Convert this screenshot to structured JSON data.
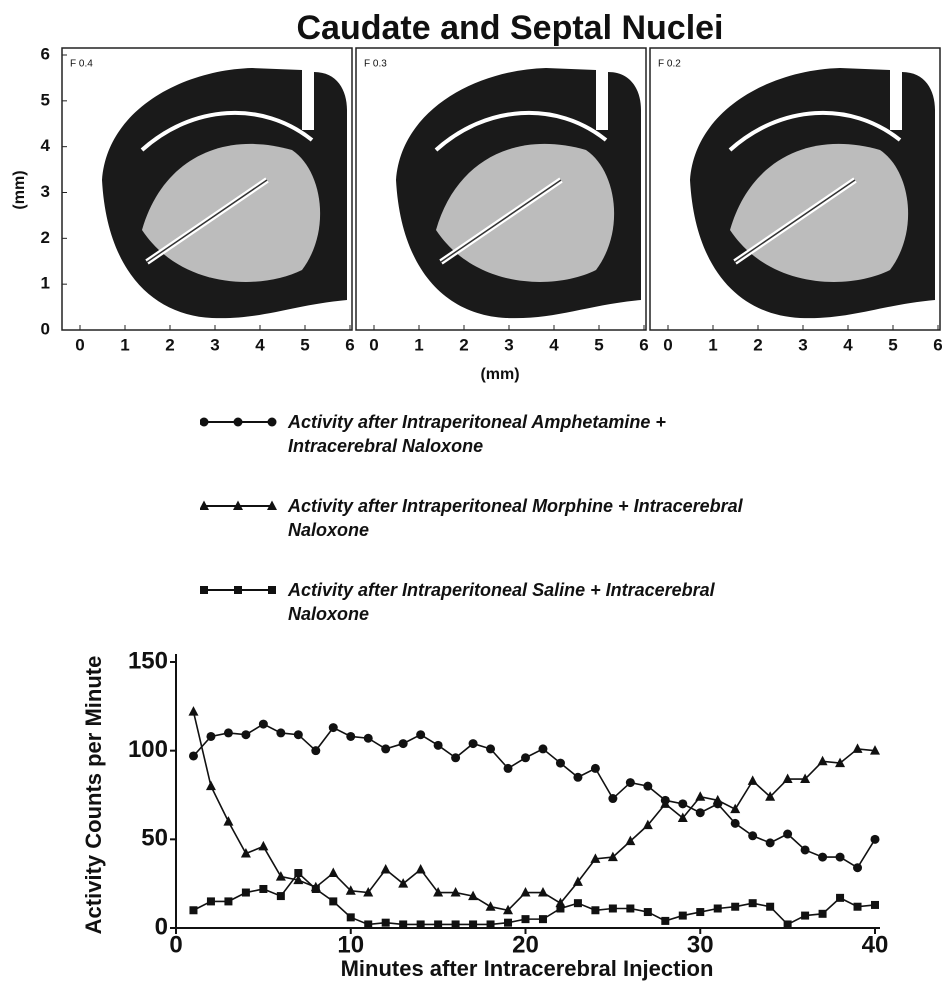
{
  "figure_title": "Caudate and Septal Nuclei",
  "brain_sections": {
    "y_label": "(mm)",
    "x_label": "(mm)",
    "xlim": [
      0,
      6
    ],
    "ylim": [
      0,
      6
    ],
    "xticks": [
      0,
      1,
      2,
      3,
      4,
      5,
      6
    ],
    "yticks": [
      0,
      1,
      2,
      3,
      4,
      5,
      6
    ],
    "panels": [
      "F 0.4",
      "F 0.3",
      "F 0.2"
    ]
  },
  "chart_data": {
    "type": "line",
    "x_label": "Minutes after Intracerebral Injection",
    "y_label": "Activity Counts per Minute",
    "x": [
      1,
      2,
      3,
      4,
      5,
      6,
      7,
      8,
      9,
      10,
      11,
      12,
      13,
      14,
      15,
      16,
      17,
      18,
      19,
      20,
      21,
      22,
      23,
      24,
      25,
      26,
      27,
      28,
      29,
      30,
      31,
      32,
      33,
      34,
      35,
      36,
      37,
      38,
      39,
      40
    ],
    "xlim": [
      0,
      40
    ],
    "xticks": [
      0,
      10,
      20,
      30,
      40
    ],
    "ylim": [
      0,
      150
    ],
    "yticks": [
      0,
      50,
      100,
      150
    ],
    "series": [
      {
        "name": "Activity after Intraperitoneal Amphetamine + Intracerebral Naloxone",
        "color": "#111111",
        "marker": "circle",
        "values": [
          97,
          108,
          110,
          109,
          115,
          110,
          109,
          100,
          113,
          108,
          107,
          101,
          104,
          109,
          103,
          96,
          104,
          101,
          90,
          96,
          101,
          93,
          85,
          90,
          73,
          82,
          80,
          72,
          70,
          65,
          70,
          59,
          52,
          48,
          53,
          44,
          40,
          40,
          34,
          50
        ]
      },
      {
        "name": "Activity after Intraperitoneal Morphine + Intracerebral Naloxone",
        "color": "#111111",
        "marker": "triangle",
        "values": [
          122,
          80,
          60,
          42,
          46,
          29,
          27,
          23,
          31,
          21,
          20,
          33,
          25,
          33,
          20,
          20,
          18,
          12,
          10,
          20,
          20,
          14,
          26,
          39,
          40,
          49,
          58,
          70,
          62,
          74,
          72,
          67,
          83,
          74,
          84,
          84,
          94,
          93,
          101,
          100
        ]
      },
      {
        "name": "Activity after Intraperitoneal Saline + Intracerebral Naloxone",
        "color": "#111111",
        "marker": "square",
        "values": [
          10,
          15,
          15,
          20,
          22,
          18,
          31,
          22,
          15,
          6,
          2,
          3,
          2,
          2,
          2,
          2,
          2,
          2,
          3,
          5,
          5,
          11,
          14,
          10,
          11,
          11,
          9,
          4,
          7,
          9,
          11,
          12,
          14,
          12,
          2,
          7,
          8,
          17,
          12,
          13
        ]
      }
    ]
  }
}
